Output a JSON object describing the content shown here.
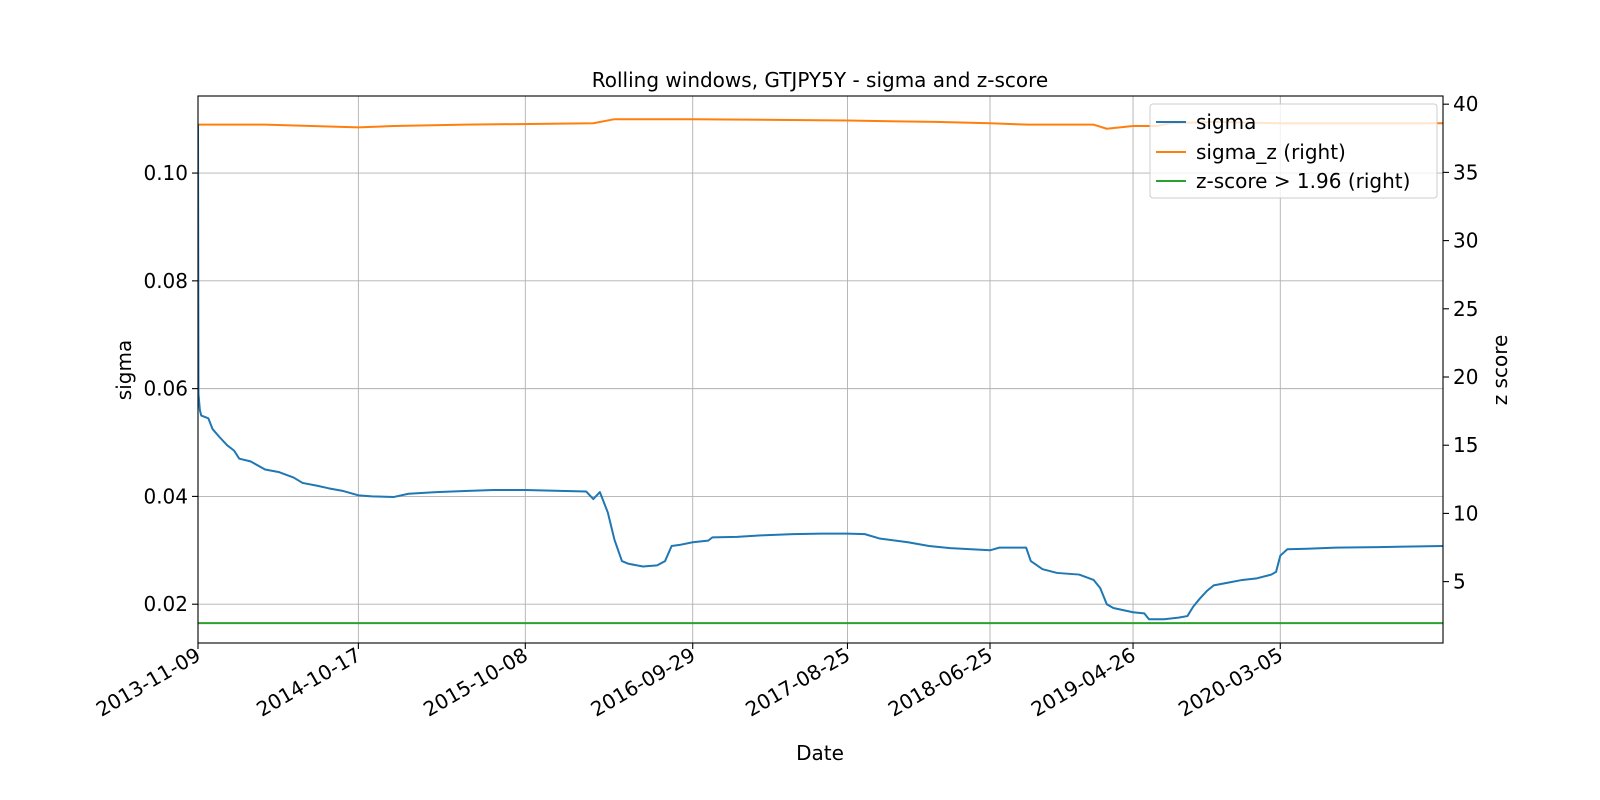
{
  "chart_data": {
    "type": "line",
    "title": "Rolling windows, GTJPY5Y - sigma and z-score",
    "xlabel": "Date",
    "ylabel": "sigma",
    "ylabel_right": "z score",
    "x_tick_labels": [
      "2013-11-09",
      "2014-10-17",
      "2015-10-08",
      "2016-09-29",
      "2017-08-25",
      "2018-06-25",
      "2019-04-26",
      "2020-03-05"
    ],
    "xlim": [
      "2013-11-09",
      "2021-02-15"
    ],
    "ylim": [
      0.0128,
      0.1143
    ],
    "y_ticks": [
      0.02,
      0.04,
      0.06,
      0.08,
      0.1
    ],
    "y_tick_labels": [
      "0.02",
      "0.04",
      "0.06",
      "0.08",
      "0.10"
    ],
    "ylim_right": [
      0.5,
      40.6
    ],
    "y_ticks_right": [
      5,
      10,
      15,
      20,
      25,
      30,
      35,
      40
    ],
    "grid": true,
    "legend_position": "upper right",
    "colors": {
      "sigma": "#1f77b4",
      "sigma_z": "#ff7f0e",
      "threshold": "#2ca02c"
    },
    "series": [
      {
        "name": "sigma",
        "axis": "left",
        "points": [
          [
            "2013-11-09",
            0.109
          ],
          [
            "2013-11-10",
            0.059
          ],
          [
            "2013-11-13",
            0.056
          ],
          [
            "2013-11-16",
            0.055
          ],
          [
            "2013-12-01",
            0.0545
          ],
          [
            "2013-12-10",
            0.0525
          ],
          [
            "2013-12-25",
            0.051
          ],
          [
            "2014-01-10",
            0.0495
          ],
          [
            "2014-01-25",
            0.0485
          ],
          [
            "2014-02-05",
            0.047
          ],
          [
            "2014-03-01",
            0.0465
          ],
          [
            "2014-04-01",
            0.045
          ],
          [
            "2014-05-01",
            0.0445
          ],
          [
            "2014-06-01",
            0.0435
          ],
          [
            "2014-06-20",
            0.0425
          ],
          [
            "2014-07-20",
            0.042
          ],
          [
            "2014-08-15",
            0.0415
          ],
          [
            "2014-09-15",
            0.041
          ],
          [
            "2014-10-17",
            0.0402
          ],
          [
            "2014-11-15",
            0.04
          ],
          [
            "2015-01-01",
            0.0399
          ],
          [
            "2015-02-01",
            0.0405
          ],
          [
            "2015-04-01",
            0.0408
          ],
          [
            "2015-06-01",
            0.041
          ],
          [
            "2015-08-01",
            0.0412
          ],
          [
            "2015-10-08",
            0.0412
          ],
          [
            "2016-01-01",
            0.041
          ],
          [
            "2016-02-15",
            0.0409
          ],
          [
            "2016-03-01",
            0.0395
          ],
          [
            "2016-03-15",
            0.0408
          ],
          [
            "2016-04-01",
            0.037
          ],
          [
            "2016-04-15",
            0.032
          ],
          [
            "2016-05-01",
            0.028
          ],
          [
            "2016-05-15",
            0.0275
          ],
          [
            "2016-06-15",
            0.027
          ],
          [
            "2016-07-15",
            0.0272
          ],
          [
            "2016-08-01",
            0.028
          ],
          [
            "2016-08-15",
            0.0308
          ],
          [
            "2016-09-01",
            0.031
          ],
          [
            "2016-09-29",
            0.0315
          ],
          [
            "2016-11-01",
            0.0318
          ],
          [
            "2016-11-10",
            0.0324
          ],
          [
            "2017-01-01",
            0.0325
          ],
          [
            "2017-03-01",
            0.0328
          ],
          [
            "2017-05-01",
            0.033
          ],
          [
            "2017-07-01",
            0.0331
          ],
          [
            "2017-08-25",
            0.0331
          ],
          [
            "2017-10-01",
            0.033
          ],
          [
            "2017-11-01",
            0.0322
          ],
          [
            "2018-01-01",
            0.0315
          ],
          [
            "2018-02-15",
            0.0308
          ],
          [
            "2018-04-01",
            0.0304
          ],
          [
            "2018-06-25",
            0.03
          ],
          [
            "2018-07-15",
            0.0305
          ],
          [
            "2018-09-10",
            0.0305
          ],
          [
            "2018-09-20",
            0.028
          ],
          [
            "2018-10-15",
            0.0265
          ],
          [
            "2018-11-15",
            0.0258
          ],
          [
            "2019-01-01",
            0.0255
          ],
          [
            "2019-02-01",
            0.0245
          ],
          [
            "2019-02-15",
            0.023
          ],
          [
            "2019-03-01",
            0.02
          ],
          [
            "2019-03-15",
            0.0193
          ],
          [
            "2019-04-26",
            0.0185
          ],
          [
            "2019-05-20",
            0.0183
          ],
          [
            "2019-05-30",
            0.0172
          ],
          [
            "2019-07-01",
            0.0172
          ],
          [
            "2019-08-01",
            0.0175
          ],
          [
            "2019-08-20",
            0.0178
          ],
          [
            "2019-09-01",
            0.0195
          ],
          [
            "2019-09-15",
            0.021
          ],
          [
            "2019-10-01",
            0.0225
          ],
          [
            "2019-10-15",
            0.0235
          ],
          [
            "2019-11-15",
            0.024
          ],
          [
            "2019-12-15",
            0.0245
          ],
          [
            "2020-01-15",
            0.0248
          ],
          [
            "2020-02-15",
            0.0255
          ],
          [
            "2020-02-25",
            0.026
          ],
          [
            "2020-03-05",
            0.029
          ],
          [
            "2020-03-20",
            0.0302
          ],
          [
            "2020-05-01",
            0.0303
          ],
          [
            "2020-07-01",
            0.0305
          ],
          [
            "2020-10-01",
            0.0306
          ],
          [
            "2021-02-15",
            0.0308
          ]
        ]
      },
      {
        "name": "sigma_z (right)",
        "axis": "right",
        "points": [
          [
            "2013-11-09",
            38.5
          ],
          [
            "2014-04-01",
            38.5
          ],
          [
            "2014-10-17",
            38.3
          ],
          [
            "2015-01-01",
            38.4
          ],
          [
            "2015-06-01",
            38.5
          ],
          [
            "2016-03-01",
            38.6
          ],
          [
            "2016-04-15",
            38.9
          ],
          [
            "2016-09-29",
            38.9
          ],
          [
            "2017-08-25",
            38.8
          ],
          [
            "2018-03-01",
            38.7
          ],
          [
            "2018-06-25",
            38.6
          ],
          [
            "2018-09-15",
            38.5
          ],
          [
            "2019-02-01",
            38.5
          ],
          [
            "2019-03-01",
            38.2
          ],
          [
            "2019-04-26",
            38.4
          ],
          [
            "2019-06-15",
            38.4
          ],
          [
            "2019-07-15",
            38.6
          ],
          [
            "2019-10-15",
            38.7
          ],
          [
            "2020-03-05",
            38.6
          ],
          [
            "2021-02-15",
            38.6
          ]
        ]
      },
      {
        "name": "z-score > 1.96 (right)",
        "axis": "right",
        "points": [
          [
            "2013-11-09",
            1.96
          ],
          [
            "2021-02-15",
            1.96
          ]
        ]
      }
    ]
  }
}
